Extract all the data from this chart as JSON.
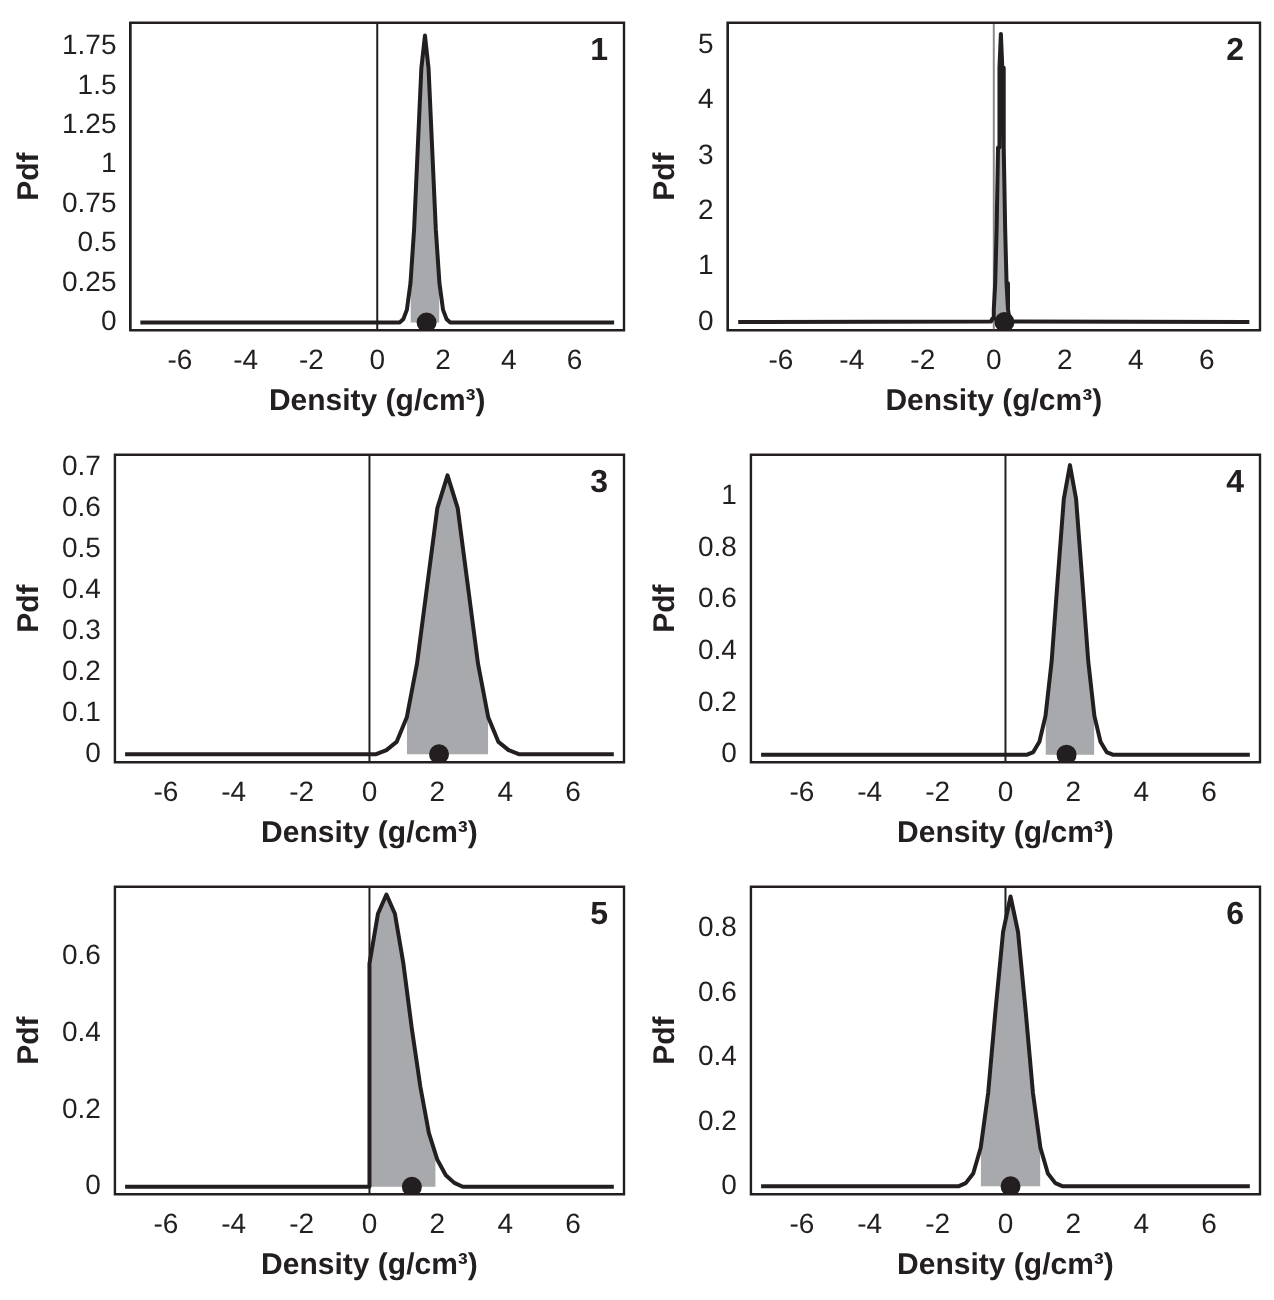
{
  "chart_data": [
    {
      "type": "line",
      "xlabel": "Density (g/cm³)",
      "ylabel": "Pdf",
      "xlim": [
        -7.5,
        7.5
      ],
      "xticks": [
        -6,
        -4,
        -2,
        0,
        2,
        4,
        6
      ],
      "ylim": [
        -0.05,
        1.9
      ],
      "yticks": [
        0,
        0.25,
        0.5,
        0.75,
        1,
        1.25,
        1.5,
        1.75
      ],
      "grid": false,
      "legend": false,
      "annotations": [
        "1"
      ],
      "ref_lines": [
        {
          "axis": "x",
          "value": 0,
          "color": "#231f20"
        }
      ],
      "series": [
        {
          "type": "area",
          "color": "#a7a9ac",
          "x": [
            1.01,
            1.12,
            1.23,
            1.34,
            1.45,
            1.56,
            1.67,
            1.78,
            1.89
          ],
          "values": [
            0.25,
            0.59,
            1.1,
            1.61,
            1.82,
            1.61,
            1.1,
            0.59,
            0.25
          ]
        },
        {
          "type": "line",
          "color": "#231f20",
          "x": [
            -7.2,
            0.68,
            0.79,
            0.9,
            1.01,
            1.12,
            1.23,
            1.34,
            1.45,
            1.56,
            1.67,
            1.78,
            1.89,
            2.0,
            2.11,
            2.22,
            7.2
          ],
          "values": [
            0,
            0,
            0.02,
            0.08,
            0.25,
            0.59,
            1.1,
            1.61,
            1.82,
            1.61,
            1.1,
            0.59,
            0.25,
            0.08,
            0.02,
            0,
            0
          ]
        },
        {
          "type": "scatter",
          "color": "#231f20",
          "marker": "circle",
          "x": [
            1.5
          ],
          "values": [
            0
          ]
        }
      ]
    },
    {
      "type": "line",
      "xlabel": "Density (g/cm³)",
      "ylabel": "Pdf",
      "xlim": [
        -7.5,
        7.5
      ],
      "xticks": [
        -6,
        -4,
        -2,
        0,
        2,
        4,
        6
      ],
      "ylim": [
        -0.15,
        5.4
      ],
      "yticks": [
        0,
        1,
        2,
        3,
        4,
        5
      ],
      "grid": false,
      "legend": false,
      "annotations": [
        "2"
      ],
      "ref_lines": [
        {
          "axis": "x",
          "value": 0,
          "color": "#8a8a8a"
        }
      ],
      "series": [
        {
          "type": "area",
          "color": "#a7a9ac",
          "x": [
            0.04,
            0.08,
            0.12,
            0.16,
            0.2,
            0.24,
            0.28,
            0.32,
            0.36
          ],
          "values": [
            0.7,
            1.69,
            3.15,
            4.59,
            5.2,
            4.59,
            3.15,
            1.69,
            0.7
          ]
        },
        {
          "type": "line",
          "color": "#231f20",
          "x": [
            -7.2,
            -0.08,
            -0.04,
            0,
            0.04,
            0.08,
            0.12,
            0.16,
            0.2,
            0.24,
            0.28,
            0.32,
            0.36,
            0.4,
            0.44,
            0.48,
            7.2
          ],
          "values": [
            0,
            0.01,
            0.06,
            0.23,
            0.7,
            1.69,
            3.15,
            4.59,
            5.2,
            4.59,
            3.15,
            1.69,
            0.7,
            0.23,
            0.06,
            0.01,
            0
          ]
        },
        {
          "type": "scatter",
          "color": "#231f20",
          "marker": "circle",
          "x": [
            0.3
          ],
          "values": [
            0
          ]
        }
      ]
    },
    {
      "type": "line",
      "xlabel": "Density (g/cm³)",
      "ylabel": "Pdf",
      "xlim": [
        -7.5,
        7.5
      ],
      "xticks": [
        -6,
        -4,
        -2,
        0,
        2,
        4,
        6
      ],
      "ylim": [
        -0.02,
        0.73
      ],
      "yticks": [
        0,
        0.1,
        0.2,
        0.3,
        0.4,
        0.5,
        0.6,
        0.7
      ],
      "grid": false,
      "legend": false,
      "annotations": [
        "3"
      ],
      "ref_lines": [
        {
          "axis": "x",
          "value": 0,
          "color": "#231f20"
        }
      ],
      "series": [
        {
          "type": "area",
          "color": "#a7a9ac",
          "x": [
            1.1,
            1.4,
            1.7,
            2.0,
            2.3,
            2.6,
            2.9,
            3.2,
            3.5
          ],
          "values": [
            0.09,
            0.22,
            0.41,
            0.6,
            0.68,
            0.6,
            0.41,
            0.22,
            0.09
          ]
        },
        {
          "type": "line",
          "color": "#231f20",
          "x": [
            -7.2,
            0.2,
            0.5,
            0.8,
            1.1,
            1.4,
            1.7,
            2.0,
            2.3,
            2.6,
            2.9,
            3.2,
            3.5,
            3.8,
            4.1,
            4.4,
            7.2
          ],
          "values": [
            0,
            0,
            0.01,
            0.03,
            0.09,
            0.22,
            0.41,
            0.6,
            0.68,
            0.6,
            0.41,
            0.22,
            0.09,
            0.03,
            0.01,
            0,
            0
          ]
        },
        {
          "type": "scatter",
          "color": "#231f20",
          "marker": "circle",
          "x": [
            2.05
          ],
          "values": [
            0
          ]
        }
      ]
    },
    {
      "type": "line",
      "xlabel": "Density (g/cm³)",
      "ylabel": "Pdf",
      "xlim": [
        -7.5,
        7.5
      ],
      "xticks": [
        -6,
        -4,
        -2,
        0,
        2,
        4,
        6
      ],
      "ylim": [
        -0.03,
        1.16
      ],
      "yticks": [
        0,
        0.2,
        0.4,
        0.6,
        0.8,
        1
      ],
      "grid": false,
      "legend": false,
      "annotations": [
        "4"
      ],
      "ref_lines": [
        {
          "axis": "x",
          "value": 0,
          "color": "#231f20"
        }
      ],
      "series": [
        {
          "type": "area",
          "color": "#a7a9ac",
          "x": [
            1.18,
            1.36,
            1.54,
            1.72,
            1.9,
            2.08,
            2.26,
            2.44,
            2.62
          ],
          "values": [
            0.15,
            0.36,
            0.68,
            0.99,
            1.12,
            0.99,
            0.68,
            0.36,
            0.15
          ]
        },
        {
          "type": "line",
          "color": "#231f20",
          "x": [
            -7.2,
            0.64,
            0.82,
            1.0,
            1.18,
            1.36,
            1.54,
            1.72,
            1.9,
            2.08,
            2.26,
            2.44,
            2.62,
            2.8,
            2.98,
            3.16,
            7.2
          ],
          "values": [
            0,
            0,
            0.01,
            0.05,
            0.15,
            0.36,
            0.68,
            0.99,
            1.12,
            0.99,
            0.68,
            0.36,
            0.15,
            0.05,
            0.01,
            0,
            0
          ]
        },
        {
          "type": "scatter",
          "color": "#231f20",
          "marker": "circle",
          "x": [
            1.8
          ],
          "values": [
            0
          ]
        }
      ]
    },
    {
      "type": "line",
      "xlabel": "Density (g/cm³)",
      "ylabel": "Pdf",
      "xlim": [
        -7.5,
        7.5
      ],
      "xticks": [
        -6,
        -4,
        -2,
        0,
        2,
        4,
        6
      ],
      "ylim": [
        -0.02,
        0.78
      ],
      "yticks": [
        0,
        0.2,
        0.4,
        0.6
      ],
      "grid": false,
      "legend": false,
      "annotations": [
        "5"
      ],
      "ref_lines": [
        {
          "axis": "x",
          "value": 0,
          "color": "#231f20"
        }
      ],
      "series": [
        {
          "type": "area",
          "color": "#a7a9ac",
          "x": [
            0,
            0.25,
            0.5,
            0.75,
            1.0,
            1.25,
            1.5,
            1.75,
            1.95
          ],
          "values": [
            0.58,
            0.71,
            0.76,
            0.71,
            0.58,
            0.41,
            0.26,
            0.14,
            0.08
          ]
        },
        {
          "type": "line",
          "color": "#231f20",
          "x": [
            -7.2,
            0,
            0,
            0.25,
            0.5,
            0.75,
            1.0,
            1.25,
            1.5,
            1.75,
            2.0,
            2.25,
            2.5,
            2.75,
            3.0,
            7.2
          ],
          "values": [
            0,
            0,
            0.58,
            0.71,
            0.76,
            0.71,
            0.58,
            0.41,
            0.26,
            0.14,
            0.07,
            0.03,
            0.01,
            0,
            0,
            0
          ]
        },
        {
          "type": "scatter",
          "color": "#231f20",
          "marker": "circle",
          "x": [
            1.25
          ],
          "values": [
            0
          ]
        }
      ]
    },
    {
      "type": "line",
      "xlabel": "Density (g/cm³)",
      "ylabel": "Pdf",
      "xlim": [
        -7.5,
        7.5
      ],
      "xticks": [
        -6,
        -4,
        -2,
        0,
        2,
        4,
        6
      ],
      "ylim": [
        -0.025,
        0.93
      ],
      "yticks": [
        0,
        0.2,
        0.4,
        0.6,
        0.8
      ],
      "grid": false,
      "legend": false,
      "annotations": [
        "6"
      ],
      "ref_lines": [
        {
          "axis": "x",
          "value": 0,
          "color": "#231f20"
        }
      ],
      "series": [
        {
          "type": "area",
          "color": "#a7a9ac",
          "x": [
            -0.73,
            -0.51,
            -0.29,
            -0.07,
            0.15,
            0.37,
            0.59,
            0.81,
            1.03
          ],
          "values": [
            0.12,
            0.29,
            0.55,
            0.79,
            0.9,
            0.79,
            0.55,
            0.29,
            0.12
          ]
        },
        {
          "type": "line",
          "color": "#231f20",
          "x": [
            -7.2,
            -1.39,
            -1.17,
            -0.95,
            -0.73,
            -0.51,
            -0.29,
            -0.07,
            0.15,
            0.37,
            0.59,
            0.81,
            1.03,
            1.25,
            1.47,
            1.69,
            7.2
          ],
          "values": [
            0,
            0,
            0.01,
            0.04,
            0.12,
            0.29,
            0.55,
            0.79,
            0.9,
            0.79,
            0.55,
            0.29,
            0.12,
            0.04,
            0.01,
            0,
            0
          ]
        },
        {
          "type": "scatter",
          "color": "#231f20",
          "marker": "circle",
          "x": [
            0.15
          ],
          "values": [
            0
          ]
        }
      ]
    }
  ]
}
